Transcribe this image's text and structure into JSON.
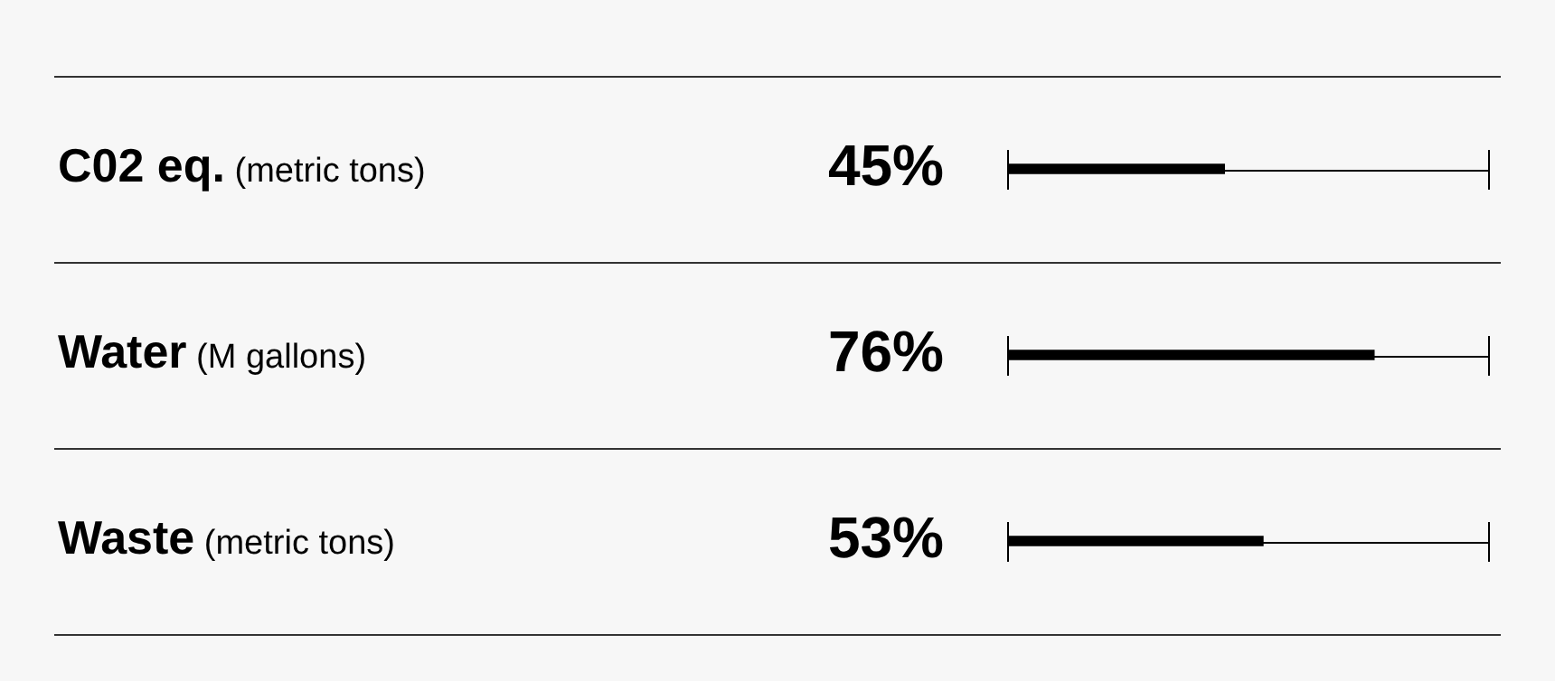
{
  "chart_data": {
    "type": "bar",
    "orientation": "horizontal",
    "categories": [
      "C02 eq. (metric tons)",
      "Water (M gallons)",
      "Waste (metric tons)"
    ],
    "values": [
      45,
      76,
      53
    ],
    "value_labels": [
      "45%",
      "76%",
      "53%"
    ],
    "color": "#000000",
    "xlim": [
      0,
      100
    ],
    "legend": false
  }
}
